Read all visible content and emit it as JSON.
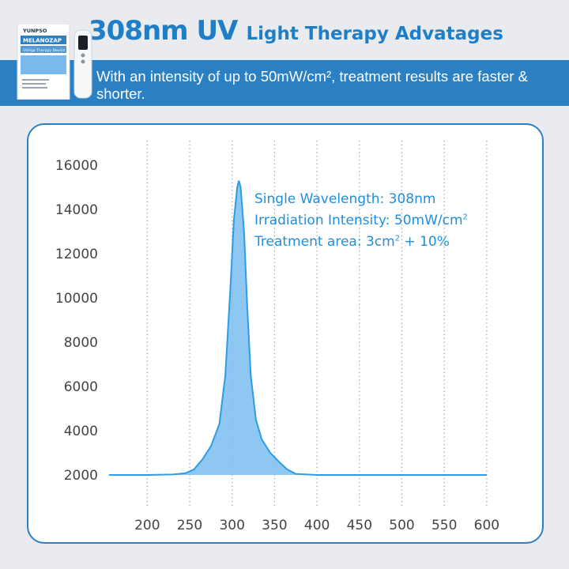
{
  "header": {
    "title_strong": "308nm UV",
    "title_rest": "Light Therapy Advatages",
    "subtitle": "With an intensity of up to 50mW/cm², treatment results are faster & shorter."
  },
  "product": {
    "brand": "YUNPSO",
    "name": "MELANOZAP",
    "tagline": "Vitiligo Therapy Device"
  },
  "colors": {
    "accent": "#2b80c4",
    "title": "#1f7fc6",
    "curve_fill": "#79bdf0",
    "curve_stroke": "#2e9be6",
    "annotation": "#1f8fdc",
    "background": "#e9ebef"
  },
  "annotations": {
    "line1": "Single Wavelength:  308nm",
    "line2_text": "Irradiation Intensity: 50mW/cm",
    "line2_sup": "2",
    "line3_pre": "Treatment area: 3cm",
    "line3_sup": "2",
    "line3_post": " + 10%"
  },
  "chart_data": {
    "type": "area",
    "title": "",
    "xlabel": "",
    "ylabel": "",
    "xlim": [
      155,
      615
    ],
    "ylim": [
      2000,
      16000
    ],
    "xticks": [
      200,
      250,
      300,
      350,
      400,
      450,
      500,
      550,
      600
    ],
    "yticks": [
      2000,
      4000,
      6000,
      8000,
      10000,
      12000,
      14000,
      16000
    ],
    "grid": "vertical dotted",
    "series": [
      {
        "x": [
          155,
          200,
          230,
          245,
          255,
          265,
          275,
          285,
          292,
          298,
          302,
          306,
          308,
          310,
          314,
          318,
          322,
          328,
          335,
          345,
          355,
          365,
          375,
          400,
          500,
          600
        ],
        "y": [
          2000,
          2000,
          2020,
          2080,
          2250,
          2700,
          3300,
          4300,
          6500,
          10500,
          13500,
          15000,
          15300,
          15000,
          13000,
          9500,
          6500,
          4500,
          3600,
          3000,
          2600,
          2250,
          2050,
          2000,
          2000,
          2000
        ]
      }
    ]
  }
}
